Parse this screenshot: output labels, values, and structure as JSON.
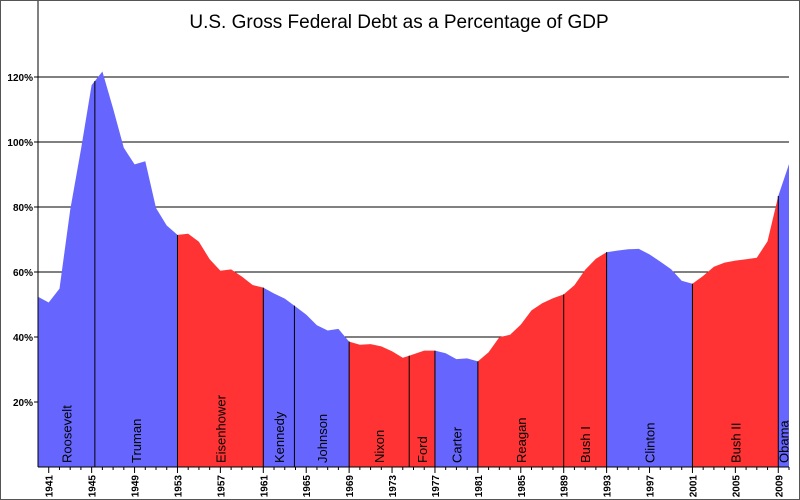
{
  "chart_data": {
    "type": "area",
    "title": "U.S. Gross Federal Debt as a Percentage of GDP",
    "xlabel": "",
    "ylabel": "",
    "xlim": [
      1940,
      2010
    ],
    "ylim": [
      0,
      135
    ],
    "grid": true,
    "y_ticks": [
      20,
      40,
      60,
      80,
      100,
      120
    ],
    "y_tick_labels": [
      "20%",
      "40%",
      "60%",
      "80%",
      "100%",
      "120%"
    ],
    "x_ticks": [
      1941,
      1945,
      1949,
      1953,
      1957,
      1961,
      1965,
      1969,
      1973,
      1977,
      1981,
      1985,
      1989,
      1993,
      1997,
      2001,
      2005,
      2009
    ],
    "x_tick_labels": [
      "1941",
      "1945",
      "1949",
      "1953",
      "1957",
      "1961",
      "1965",
      "1969",
      "1973",
      "1977",
      "1981",
      "1985",
      "1989",
      "1993",
      "1997",
      "2001",
      "2005",
      "2009"
    ],
    "colors": {
      "democrat": "#6666ff",
      "republican": "#ff3333"
    },
    "x": [
      1940,
      1941,
      1942,
      1943,
      1944,
      1945,
      1946,
      1947,
      1948,
      1949,
      1950,
      1951,
      1952,
      1953,
      1954,
      1955,
      1956,
      1957,
      1958,
      1959,
      1960,
      1961,
      1962,
      1963,
      1964,
      1965,
      1966,
      1967,
      1968,
      1969,
      1970,
      1971,
      1972,
      1973,
      1974,
      1975,
      1976,
      1977,
      1978,
      1979,
      1980,
      1981,
      1982,
      1983,
      1984,
      1985,
      1986,
      1987,
      1988,
      1989,
      1990,
      1991,
      1992,
      1993,
      1994,
      1995,
      1996,
      1997,
      1998,
      1999,
      2000,
      2001,
      2002,
      2003,
      2004,
      2005,
      2006,
      2007,
      2008,
      2009,
      2010
    ],
    "values": [
      52.4,
      50.6,
      54.9,
      79.1,
      97.6,
      117.5,
      121.7,
      110.3,
      98.2,
      93.1,
      94.1,
      79.7,
      74.3,
      71.4,
      71.8,
      69.3,
      63.9,
      60.4,
      60.8,
      58.6,
      56.0,
      55.2,
      53.4,
      51.8,
      49.4,
      46.9,
      43.6,
      42.0,
      42.5,
      38.6,
      37.6,
      37.8,
      37.1,
      35.6,
      33.6,
      34.7,
      35.8,
      35.8,
      35.0,
      33.2,
      33.4,
      32.5,
      35.3,
      39.9,
      40.7,
      43.8,
      48.2,
      50.4,
      51.9,
      53.1,
      55.9,
      60.7,
      64.1,
      66.1,
      66.6,
      67.0,
      67.1,
      65.4,
      63.2,
      60.9,
      57.3,
      56.4,
      58.8,
      61.6,
      62.9,
      63.5,
      63.9,
      64.4,
      69.4,
      83.4,
      93.2
    ],
    "presidents": [
      {
        "name": "Roosevelt",
        "start": 1940,
        "end": 1945.3,
        "party": "democrat"
      },
      {
        "name": "Truman",
        "start": 1945.3,
        "end": 1953,
        "party": "democrat"
      },
      {
        "name": "Eisenhower",
        "start": 1953,
        "end": 1961,
        "party": "republican"
      },
      {
        "name": "Kennedy",
        "start": 1961,
        "end": 1963.9,
        "party": "democrat"
      },
      {
        "name": "Johnson",
        "start": 1963.9,
        "end": 1969,
        "party": "democrat"
      },
      {
        "name": "Nixon",
        "start": 1969,
        "end": 1974.6,
        "party": "republican"
      },
      {
        "name": "Ford",
        "start": 1974.6,
        "end": 1977,
        "party": "republican"
      },
      {
        "name": "Carter",
        "start": 1977,
        "end": 1981,
        "party": "democrat"
      },
      {
        "name": "Reagan",
        "start": 1981,
        "end": 1989,
        "party": "republican"
      },
      {
        "name": "Bush I",
        "start": 1989,
        "end": 1993,
        "party": "republican"
      },
      {
        "name": "Clinton",
        "start": 1993,
        "end": 2001,
        "party": "democrat"
      },
      {
        "name": "Bush II",
        "start": 2001,
        "end": 2009,
        "party": "republican"
      },
      {
        "name": "Obama",
        "start": 2009,
        "end": 2010,
        "party": "democrat"
      }
    ]
  }
}
